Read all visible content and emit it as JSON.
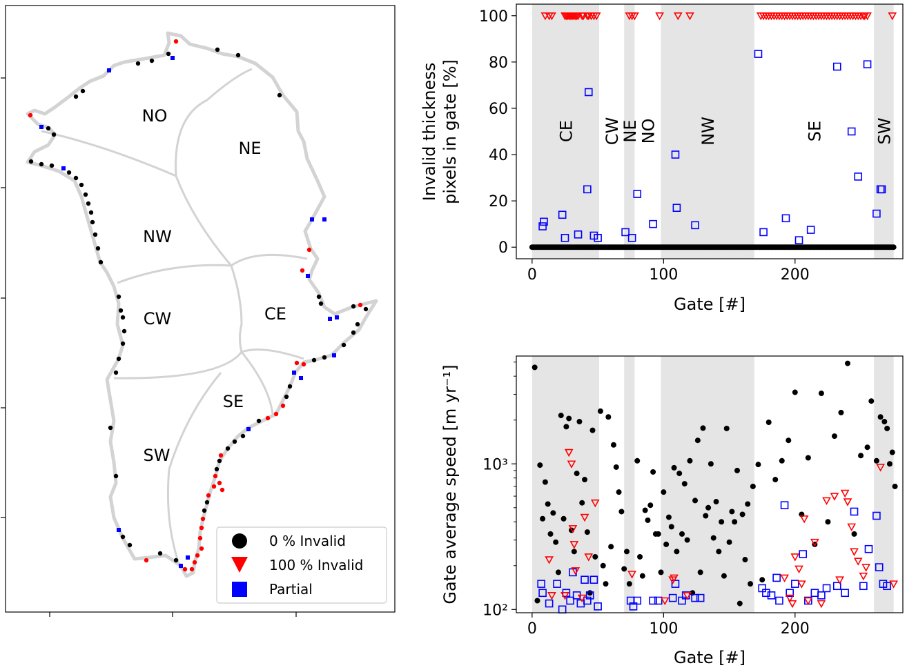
{
  "map": {
    "region_labels": [
      "NO",
      "NE",
      "NW",
      "CW",
      "CE",
      "SE",
      "SW"
    ],
    "legend": [
      "0 % Invalid",
      "100 % Invalid",
      "Partial"
    ]
  },
  "colors": {
    "valid": "#000000",
    "invalid": "#ff0000",
    "partial": "#0000ff",
    "shade": "#e5e5e5",
    "coast": "#d3d3d3"
  },
  "chart_data": [
    {
      "type": "scatter",
      "xlabel": "Gate [#]",
      "ylabel_lines": [
        "Invalid thickness",
        "pixels in gate [%]"
      ],
      "xlim": [
        -12,
        282
      ],
      "ylim": [
        -5,
        105
      ],
      "xticks": [
        "0",
        "100",
        "200"
      ],
      "xtick_values": [
        0,
        100,
        200
      ],
      "yticks": [
        "0",
        "20",
        "40",
        "60",
        "80",
        "100"
      ],
      "ytick_values": [
        0,
        20,
        40,
        60,
        80,
        100
      ],
      "regions": [
        {
          "name": "CE",
          "x0": 0,
          "x1": 51,
          "shaded": true
        },
        {
          "name": "CW",
          "x0": 51,
          "x1": 70,
          "shaded": false
        },
        {
          "name": "NE",
          "x0": 70,
          "x1": 78,
          "shaded": true
        },
        {
          "name": "NO",
          "x0": 78,
          "x1": 98,
          "shaded": false
        },
        {
          "name": "NW",
          "x0": 98,
          "x1": 169,
          "shaded": true
        },
        {
          "name": "SE",
          "x0": 169,
          "x1": 260,
          "shaded": false
        },
        {
          "name": "SW",
          "x0": 260,
          "x1": 275,
          "shaded": true
        }
      ],
      "series": [
        {
          "marker": "filled-circle",
          "color": "#000000",
          "x": [
            0,
            1,
            2,
            3,
            4,
            5,
            6,
            7,
            8,
            9,
            10,
            11,
            12,
            13,
            14,
            15,
            16,
            17,
            18,
            19,
            20,
            21,
            22,
            23,
            24,
            25,
            26,
            27,
            28,
            29,
            30,
            31,
            32,
            33,
            34,
            35,
            36,
            37,
            38,
            39,
            40,
            41,
            42,
            43,
            44,
            45,
            46,
            47,
            48,
            49,
            50,
            51,
            52,
            53,
            54,
            55,
            56,
            57,
            58,
            59,
            60,
            61,
            62,
            63,
            64,
            65,
            66,
            67,
            68,
            69,
            70,
            71,
            72,
            73,
            74,
            75,
            76,
            77,
            78,
            79,
            80,
            81,
            82,
            83,
            84,
            85,
            86,
            87,
            88,
            89,
            90,
            91,
            92,
            93,
            94,
            95,
            96,
            97,
            98,
            99,
            100,
            101,
            102,
            103,
            104,
            105,
            106,
            107,
            108,
            109,
            110,
            111,
            112,
            113,
            114,
            115,
            116,
            117,
            118,
            119,
            120,
            121,
            122,
            123,
            124,
            125,
            126,
            127,
            128,
            129,
            130,
            131,
            132,
            133,
            134,
            135,
            136,
            137,
            138,
            139,
            140,
            141,
            142,
            143,
            144,
            145,
            146,
            147,
            148,
            149,
            150,
            151,
            152,
            153,
            154,
            155,
            156,
            157,
            158,
            159,
            160,
            161,
            162,
            163,
            164,
            165,
            166,
            167,
            168,
            169,
            170,
            171,
            172,
            173,
            174,
            175,
            176,
            177,
            178,
            179,
            180,
            181,
            182,
            183,
            184,
            185,
            186,
            187,
            188,
            189,
            190,
            191,
            192,
            193,
            194,
            195,
            196,
            197,
            198,
            199,
            200,
            201,
            202,
            203,
            204,
            205,
            206,
            207,
            208,
            209,
            210,
            211,
            212,
            213,
            214,
            215,
            216,
            217,
            218,
            219,
            220,
            221,
            222,
            223,
            224,
            225,
            226,
            227,
            228,
            229,
            230,
            231,
            232,
            233,
            234,
            235,
            236,
            237,
            238,
            239,
            240,
            241,
            242,
            243,
            244,
            245,
            246,
            247,
            248,
            249,
            250,
            251,
            252,
            253,
            254,
            255,
            256,
            257,
            258,
            259,
            260,
            261,
            262,
            263,
            264,
            265,
            266,
            267,
            268,
            269,
            270,
            271,
            272,
            273,
            274,
            275
          ],
          "y_all": 0
        },
        {
          "marker": "open-triangle-down",
          "color": "#ff0000",
          "x": [
            10,
            13,
            15,
            25,
            26,
            27,
            28,
            29,
            30,
            31,
            32,
            33,
            34,
            35,
            38,
            39,
            42,
            43,
            45,
            47,
            49,
            74,
            76,
            78,
            97,
            111,
            120,
            174,
            176,
            178,
            180,
            182,
            184,
            186,
            188,
            190,
            192,
            194,
            196,
            198,
            200,
            202,
            204,
            206,
            208,
            210,
            212,
            214,
            216,
            218,
            220,
            222,
            224,
            226,
            228,
            230,
            232,
            234,
            236,
            238,
            240,
            242,
            244,
            246,
            248,
            250,
            252,
            253,
            255,
            274
          ],
          "y_all": 100
        },
        {
          "marker": "open-square",
          "color": "#0000ff",
          "x": [
            8,
            9,
            23,
            25,
            35,
            42,
            43,
            47,
            50,
            71,
            76,
            80,
            92,
            109,
            110,
            124,
            172,
            176,
            193,
            203,
            212,
            232,
            243,
            248,
            255,
            262,
            265,
            266
          ],
          "y": [
            9,
            11,
            14,
            4,
            5.5,
            25,
            67,
            5,
            4,
            6.5,
            4,
            23,
            10,
            40,
            17,
            9.5,
            83.5,
            6.5,
            12.5,
            3,
            7.5,
            78,
            50,
            30.5,
            79,
            14.5,
            25,
            25
          ]
        }
      ]
    },
    {
      "type": "scatter",
      "xlabel": "Gate [#]",
      "ylabel": "Gate average speed [m yr⁻¹]",
      "yscale": "log",
      "xlim": [
        -12,
        282
      ],
      "ylim": [
        95,
        5500
      ],
      "xticks": [
        "0",
        "100",
        "200"
      ],
      "xtick_values": [
        0,
        100,
        200
      ],
      "yticks": [
        "10²",
        "10³"
      ],
      "ytick_values": [
        100,
        1000
      ],
      "shaded_regions": [
        [
          0,
          51
        ],
        [
          70,
          78
        ],
        [
          98,
          169
        ],
        [
          260,
          275
        ]
      ],
      "series": [
        {
          "marker": "filled-circle",
          "color": "#000000",
          "x": [
            2,
            4,
            6,
            8,
            10,
            12,
            14,
            16,
            18,
            20,
            22,
            24,
            26,
            28,
            30,
            32,
            34,
            36,
            38,
            40,
            42,
            44,
            46,
            48,
            52,
            54,
            56,
            58,
            60,
            62,
            64,
            66,
            68,
            70,
            72,
            74,
            80,
            82,
            84,
            86,
            88,
            90,
            92,
            94,
            96,
            98,
            100,
            102,
            104,
            106,
            108,
            110,
            112,
            114,
            116,
            118,
            120,
            122,
            124,
            126,
            128,
            130,
            132,
            134,
            136,
            138,
            140,
            142,
            144,
            146,
            148,
            150,
            152,
            154,
            156,
            158,
            160,
            162,
            164,
            166,
            168,
            172,
            175,
            180,
            185,
            190,
            195,
            200,
            205,
            210,
            215,
            220,
            225,
            230,
            235,
            240,
            245,
            250,
            255,
            258,
            262,
            265,
            268,
            270,
            272,
            274,
            276
          ],
          "y": [
            4600,
            115,
            980,
            420,
            750,
            530,
            330,
            460,
            290,
            180,
            2150,
            420,
            1800,
            2050,
            350,
            250,
            860,
            1950,
            540,
            780,
            340,
            130,
            1700,
            230,
            2300,
            200,
            150,
            2100,
            270,
            1350,
            950,
            640,
            470,
            190,
            250,
            150,
            1050,
            230,
            170,
            480,
            410,
            520,
            880,
            330,
            330,
            180,
            640,
            280,
            430,
            370,
            940,
            250,
            860,
            330,
            730,
            300,
            1050,
            130,
            560,
            1450,
            180,
            1760,
            440,
            500,
            1000,
            310,
            550,
            250,
            400,
            170,
            1750,
            290,
            470,
            400,
            900,
            110,
            450,
            220,
            530,
            150,
            700,
            990,
            160,
            1930,
            780,
            1050,
            1450,
            3100,
            450,
            1100,
            280,
            3050,
            400,
            1550,
            2250,
            4900,
            330,
            1140,
            1300,
            2700,
            1050,
            2100,
            1950,
            1750,
            1000,
            1200,
            700
          ]
        },
        {
          "marker": "open-square",
          "color": "#0000ff",
          "x": [
            7,
            8,
            13,
            19,
            23,
            26,
            29,
            31,
            34,
            37,
            40,
            42,
            44,
            47,
            50,
            75,
            77,
            80,
            92,
            96,
            107,
            109,
            114,
            117,
            124,
            128,
            175,
            178,
            182,
            186,
            188,
            192,
            196,
            200,
            206,
            210,
            215,
            220,
            224,
            232,
            238,
            245,
            252,
            256,
            262,
            264,
            267,
            270
          ],
          "y": [
            150,
            130,
            110,
            150,
            100,
            130,
            115,
            180,
            125,
            110,
            160,
            115,
            125,
            160,
            105,
            115,
            105,
            115,
            115,
            115,
            120,
            150,
            115,
            125,
            120,
            120,
            140,
            130,
            125,
            165,
            115,
            520,
            130,
            150,
            240,
            115,
            130,
            125,
            140,
            145,
            130,
            470,
            145,
            260,
            440,
            195,
            150,
            145
          ]
        },
        {
          "marker": "open-triangle-down",
          "color": "#ff0000",
          "x": [
            13,
            15,
            25,
            28,
            30,
            31,
            32,
            33,
            38,
            40,
            43,
            48,
            76,
            101,
            107,
            108,
            118,
            192,
            196,
            198,
            200,
            203,
            205,
            207,
            210,
            215,
            220,
            224,
            230,
            234,
            238,
            240,
            243,
            245,
            248,
            252,
            254,
            265,
            275
          ],
          "y": [
            220,
            125,
            125,
            1200,
            1000,
            360,
            280,
            185,
            120,
            430,
            230,
            540,
            175,
            115,
            160,
            165,
            125,
            165,
            120,
            110,
            230,
            190,
            150,
            420,
            115,
            290,
            110,
            560,
            600,
            160,
            630,
            550,
            370,
            250,
            215,
            170,
            195,
            950,
            150
          ]
        }
      ]
    }
  ]
}
